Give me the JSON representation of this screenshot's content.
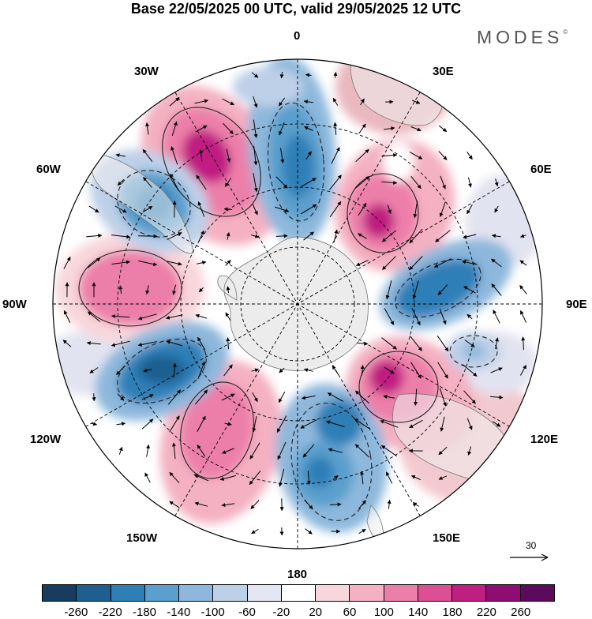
{
  "title": "Base 22/05/2025 00 UTC, valid 29/05/2025 12 UTC",
  "brand": "MODES",
  "brand_mark": "©",
  "longitude_labels": {
    "lon_0": "0",
    "lon_30e": "30E",
    "lon_60e": "60E",
    "lon_90e": "90E",
    "lon_120e": "120E",
    "lon_150e": "150E",
    "lon_180": "180",
    "lon_150w": "150W",
    "lon_120w": "120W",
    "lon_90w": "90W",
    "lon_60w": "60W",
    "lon_30w": "30W"
  },
  "reference_vector": "30",
  "colorbar": {
    "tick_labels": [
      "-260",
      "-220",
      "-180",
      "-140",
      "-100",
      "-60",
      "-20",
      "20",
      "60",
      "100",
      "140",
      "180",
      "220",
      "260"
    ],
    "colors": [
      "#163d5e",
      "#1f5f90",
      "#2f7fb7",
      "#5a9fcd",
      "#8db8dc",
      "#bdd0e8",
      "#e4e6f2",
      "#ffffff",
      "#f8d7dc",
      "#f4b1c2",
      "#ec7fa9",
      "#dc4f94",
      "#c01f82",
      "#8f0d72",
      "#5c0a5e"
    ]
  },
  "icons": {
    "map": "polar-stereographic-south-map",
    "vector": "wind-arrow-icon"
  }
}
